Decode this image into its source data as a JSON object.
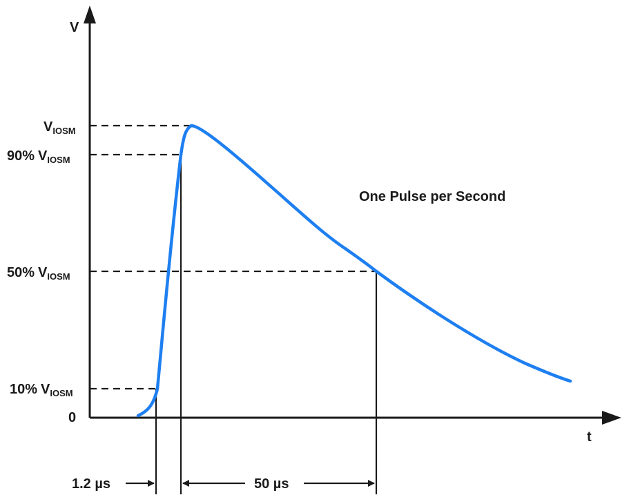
{
  "axes": {
    "y_label": "V",
    "x_label": "t",
    "origin_label": "0"
  },
  "levels": {
    "peak": {
      "main": "V",
      "sub": "IOSM"
    },
    "p90": {
      "prefix": "90%",
      "main": "V",
      "sub": "IOSM"
    },
    "p50": {
      "prefix": "50%",
      "main": "V",
      "sub": "IOSM"
    },
    "p10": {
      "prefix": "10%",
      "main": "V",
      "sub": "IOSM"
    }
  },
  "annotation": "One Pulse per Second",
  "timing": {
    "rise_time": "1.2 µs",
    "decay_time": "50 µs"
  },
  "colors": {
    "waveform": "#1e7ff0",
    "lines": "#1a1a1a"
  }
}
